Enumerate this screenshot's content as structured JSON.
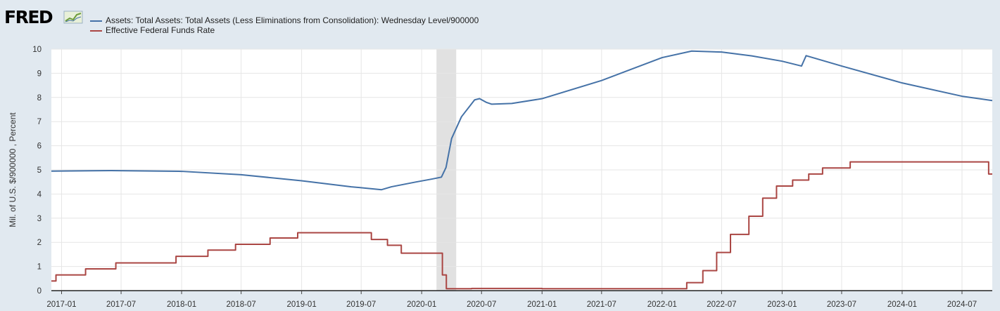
{
  "brand": {
    "logo_text": "FRED"
  },
  "chart_data": {
    "type": "line",
    "title": "",
    "xlabel": "",
    "ylabel": "Mil. of U.S. $/900000 , Percent",
    "ylim": [
      0,
      10
    ],
    "xlim": [
      "2016-12-01",
      "2024-10-01"
    ],
    "y_ticks": [
      0,
      1,
      2,
      3,
      4,
      5,
      6,
      7,
      8,
      9,
      10
    ],
    "x_ticks": [
      "2017-01",
      "2017-07",
      "2018-01",
      "2018-07",
      "2019-01",
      "2019-07",
      "2020-01",
      "2020-07",
      "2021-01",
      "2021-07",
      "2022-01",
      "2022-07",
      "2023-01",
      "2023-07",
      "2024-01",
      "2024-07"
    ],
    "grid": true,
    "legend_position": "top-left",
    "recession_shading": [
      [
        "2020-02-15",
        "2020-04-15"
      ]
    ],
    "series": [
      {
        "name": "Assets: Total Assets: Total Assets (Less Eliminations from Consolidation): Wednesday Level/900000",
        "color": "#4572a7",
        "step": false,
        "points": [
          [
            "2016-12-01",
            4.95
          ],
          [
            "2017-06-01",
            4.97
          ],
          [
            "2018-01-01",
            4.94
          ],
          [
            "2018-07-01",
            4.8
          ],
          [
            "2019-01-01",
            4.55
          ],
          [
            "2019-06-01",
            4.3
          ],
          [
            "2019-09-01",
            4.18
          ],
          [
            "2019-10-01",
            4.3
          ],
          [
            "2019-12-15",
            4.5
          ],
          [
            "2020-02-01",
            4.62
          ],
          [
            "2020-03-01",
            4.7
          ],
          [
            "2020-03-15",
            5.1
          ],
          [
            "2020-04-01",
            6.3
          ],
          [
            "2020-05-01",
            7.2
          ],
          [
            "2020-06-10",
            7.9
          ],
          [
            "2020-06-25",
            7.95
          ],
          [
            "2020-07-15",
            7.8
          ],
          [
            "2020-08-01",
            7.72
          ],
          [
            "2020-10-01",
            7.75
          ],
          [
            "2021-01-01",
            7.95
          ],
          [
            "2021-07-01",
            8.7
          ],
          [
            "2022-01-01",
            9.65
          ],
          [
            "2022-04-01",
            9.92
          ],
          [
            "2022-07-01",
            9.88
          ],
          [
            "2022-10-01",
            9.72
          ],
          [
            "2023-01-01",
            9.5
          ],
          [
            "2023-03-01",
            9.3
          ],
          [
            "2023-03-15",
            9.73
          ],
          [
            "2023-07-01",
            9.3
          ],
          [
            "2024-01-01",
            8.6
          ],
          [
            "2024-07-01",
            8.05
          ],
          [
            "2024-10-01",
            7.87
          ]
        ]
      },
      {
        "name": "Effective Federal Funds Rate",
        "color": "#aa4643",
        "step": true,
        "points": [
          [
            "2016-12-01",
            0.4
          ],
          [
            "2016-12-15",
            0.65
          ],
          [
            "2017-03-15",
            0.9
          ],
          [
            "2017-06-15",
            1.15
          ],
          [
            "2017-12-15",
            1.42
          ],
          [
            "2018-03-22",
            1.68
          ],
          [
            "2018-06-14",
            1.92
          ],
          [
            "2018-09-27",
            2.18
          ],
          [
            "2018-12-20",
            2.4
          ],
          [
            "2019-08-01",
            2.12
          ],
          [
            "2019-09-19",
            1.88
          ],
          [
            "2019-10-31",
            1.55
          ],
          [
            "2020-03-04",
            0.65
          ],
          [
            "2020-03-16",
            0.08
          ],
          [
            "2020-06-01",
            0.09
          ],
          [
            "2021-01-01",
            0.08
          ],
          [
            "2022-03-17",
            0.33
          ],
          [
            "2022-05-05",
            0.83
          ],
          [
            "2022-06-16",
            1.58
          ],
          [
            "2022-07-28",
            2.33
          ],
          [
            "2022-09-22",
            3.08
          ],
          [
            "2022-11-03",
            3.83
          ],
          [
            "2022-12-15",
            4.33
          ],
          [
            "2023-02-02",
            4.58
          ],
          [
            "2023-03-23",
            4.83
          ],
          [
            "2023-05-04",
            5.08
          ],
          [
            "2023-07-27",
            5.33
          ],
          [
            "2024-09-20",
            4.83
          ]
        ]
      }
    ]
  }
}
